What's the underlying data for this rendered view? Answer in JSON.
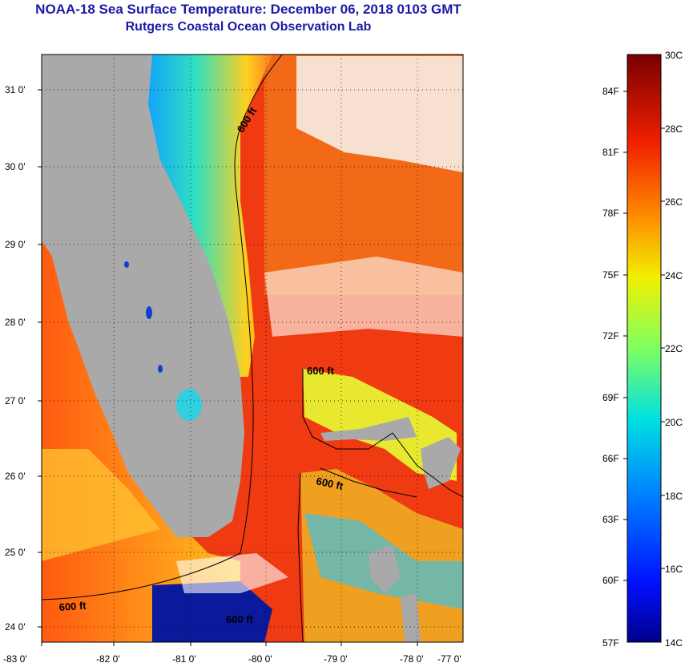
{
  "title": "NOAA-18 Sea Surface Temperature:  December 06, 2018 0103 GMT",
  "subtitle": "Rutgers Coastal Ocean Observation Lab",
  "longitude_ticks": [
    "-83 0'",
    "-82 0'",
    "-81 0'",
    "-80 0'",
    "-79 0'",
    "-78 0'",
    "-77 0'"
  ],
  "latitude_ticks": [
    "31 0'",
    "30 0'",
    "29 0'",
    "28 0'",
    "27 0'",
    "26 0'",
    "25 0'",
    "24 0'"
  ],
  "contour_label": "600 ft",
  "colorbar": {
    "celsius_labels": [
      "30C",
      "28C",
      "26C",
      "24C",
      "22C",
      "20C",
      "18C",
      "16C",
      "14C"
    ],
    "fahrenheit_labels": [
      "84F",
      "81F",
      "78F",
      "75F",
      "72F",
      "69F",
      "66F",
      "63F",
      "60F",
      "57F"
    ],
    "min_c": 14,
    "max_c": 30
  },
  "colors": {
    "title": "#1a1aa6",
    "land": "#a9a9a9",
    "gulf_stream": "#f03010",
    "cold_coastal": "#1030d0"
  }
}
